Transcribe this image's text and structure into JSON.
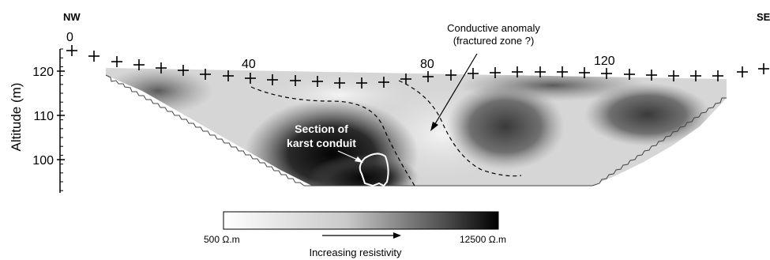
{
  "profile": {
    "end_left": "NW",
    "end_right": "SE",
    "distance_labels": [
      "0",
      "40",
      "80",
      "120"
    ]
  },
  "axis": {
    "label": "Altitude (m)",
    "ticks": [
      "120",
      "110",
      "100"
    ]
  },
  "annotations": {
    "anomaly_line1": "Conductive anomaly",
    "anomaly_line2": "(fractured zone ?)",
    "conduit_line1": "Section of",
    "conduit_line2": "karst conduit"
  },
  "colorbar": {
    "min_label": "500 Ω.m",
    "max_label": "12500 Ω.m",
    "caption": "Increasing resistivity",
    "min_color": "#ffffff",
    "max_color": "#000000"
  }
}
